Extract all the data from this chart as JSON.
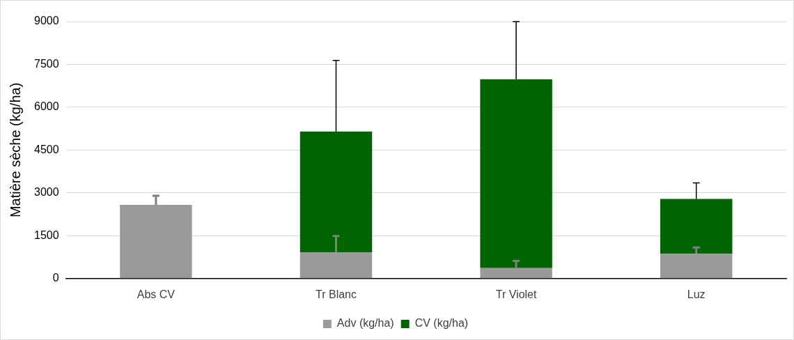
{
  "chart_data": {
    "type": "bar",
    "stacked": true,
    "ylabel": "Matière sèche (kg/ha)",
    "categories": [
      "Abs CV",
      "Tr Blanc",
      "Tr Violet",
      "Luz"
    ],
    "series": [
      {
        "name": "Adv (kg/ha)",
        "color": "#9a9a9a",
        "values": [
          2580,
          920,
          370,
          870
        ],
        "errors": [
          [
            2580,
            2900
          ],
          [
            920,
            1490
          ],
          [
            370,
            620
          ],
          [
            870,
            1090
          ]
        ]
      },
      {
        "name": "CV (kg/ha)",
        "color": "#006400",
        "values": [
          0,
          4230,
          6610,
          1920
        ],
        "errors": [
          null,
          [
            5150,
            7640
          ],
          [
            6980,
            9000
          ],
          [
            2790,
            3350
          ]
        ]
      }
    ],
    "ylim": [
      0,
      9000
    ],
    "yticks": [
      0,
      1500,
      3000,
      4500,
      6000,
      7500,
      9000
    ],
    "grid": "y",
    "legend": "bottom"
  }
}
